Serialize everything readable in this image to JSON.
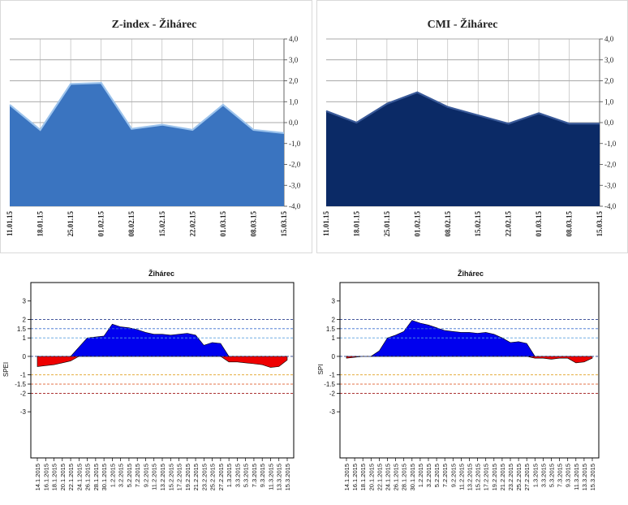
{
  "chart_data": [
    {
      "type": "area",
      "title": "Z-index - Žihárec",
      "x": [
        "11.01.15",
        "18.01.15",
        "25.01.15",
        "01.02.15",
        "08.02.15",
        "15.02.15",
        "22.02.15",
        "01.03.15",
        "08.03.15",
        "15.03.15"
      ],
      "series": [
        {
          "values": [
            0.85,
            -0.35,
            1.85,
            1.9,
            -0.3,
            -0.1,
            -0.35,
            0.85,
            -0.35,
            -0.5
          ]
        }
      ],
      "ylim": [
        -4,
        4
      ],
      "yticks": [
        "4,0",
        "3,0",
        "2,0",
        "1,0",
        "0,0",
        "-1,0",
        "-2,0",
        "-3,0",
        "-4,0"
      ],
      "grid": true,
      "colors": {
        "fill": "#3a74c0",
        "line": "#9cc3ec",
        "frame": "#d9d9d9"
      }
    },
    {
      "type": "area",
      "title": "CMI - Žihárec",
      "x": [
        "11.01.15",
        "18.01.15",
        "25.01.15",
        "01.02.15",
        "08.02.15",
        "15.02.15",
        "22.02.15",
        "01.03.15",
        "08.03.15",
        "15.03.15"
      ],
      "series": [
        {
          "values": [
            0.55,
            0.0,
            0.9,
            1.45,
            0.75,
            0.35,
            -0.05,
            0.45,
            -0.05,
            -0.05
          ]
        }
      ],
      "ylim": [
        -4,
        4
      ],
      "yticks": [
        "4,0",
        "3,0",
        "2,0",
        "1,0",
        "0,0",
        "-1,0",
        "-2,0",
        "-3,0",
        "-4,0"
      ],
      "grid": true,
      "colors": {
        "fill": "#0b2a66",
        "line": "#3a5a99",
        "frame": "#d9d9d9"
      }
    },
    {
      "type": "area",
      "title": "Žiháreс",
      "ylabel": "SPEI",
      "x": [
        "14.1.2015",
        "16.1.2015",
        "18.1.2015",
        "20.1.2015",
        "22.1.2015",
        "24.1.2015",
        "26.1.2015",
        "28.1.2015",
        "30.1.2015",
        "1.2.2015",
        "3.2.2015",
        "5.2.2015",
        "7.2.2015",
        "9.2.2015",
        "11.2.2015",
        "13.2.2015",
        "15.2.2015",
        "17.2.2015",
        "19.2.2015",
        "21.2.2015",
        "23.2.2015",
        "25.2.2015",
        "27.2.2015",
        "1.3.2015",
        "3.3.2015",
        "5.3.2015",
        "7.3.2015",
        "9.3.2015",
        "11.3.2015",
        "13.3.2015",
        "15.3.2015"
      ],
      "series": [
        {
          "values": [
            -0.55,
            -0.5,
            -0.45,
            -0.35,
            -0.25,
            0.5,
            1.0,
            1.05,
            1.1,
            1.75,
            1.6,
            1.55,
            1.45,
            1.3,
            1.2,
            1.2,
            1.15,
            1.2,
            1.25,
            1.15,
            0.6,
            0.75,
            0.7,
            -0.3,
            -0.3,
            -0.35,
            -0.4,
            -0.45,
            -0.6,
            -0.55,
            -0.2
          ]
        }
      ],
      "ylim": [
        -5.5,
        4
      ],
      "yticks": [
        "3",
        "2",
        "1.5",
        "1",
        "0",
        "-1",
        "-1.5",
        "-2",
        "-3"
      ],
      "thresholds": [
        {
          "value": 2,
          "color": "#2a3f8f"
        },
        {
          "value": 1.5,
          "color": "#3a6fd0"
        },
        {
          "value": 1,
          "color": "#5aa0e0"
        },
        {
          "value": 0,
          "color": "#2a3f8f"
        },
        {
          "value": -1,
          "color": "#e0a020"
        },
        {
          "value": -1.5,
          "color": "#e06030"
        },
        {
          "value": -2,
          "color": "#a01818"
        }
      ],
      "colors": {
        "positive": "#0000ee",
        "negative": "#ee0000"
      }
    },
    {
      "type": "area",
      "title": "Žiháreс",
      "ylabel": "SPI",
      "x": [
        "14.1.2015",
        "16.1.2015",
        "18.1.2015",
        "20.1.2015",
        "22.1.2015",
        "24.1.2015",
        "26.1.2015",
        "28.1.2015",
        "30.1.2015",
        "1.2.2015",
        "3.2.2015",
        "5.2.2015",
        "7.2.2015",
        "9.2.2015",
        "11.2.2015",
        "13.2.2015",
        "15.2.2015",
        "17.2.2015",
        "19.2.2015",
        "21.2.2015",
        "23.2.2015",
        "25.2.2015",
        "27.2.2015",
        "1.3.2015",
        "3.3.2015",
        "5.3.2015",
        "7.3.2015",
        "9.3.2015",
        "11.3.2015",
        "13.3.2015",
        "15.3.2015"
      ],
      "series": [
        {
          "values": [
            -0.1,
            -0.05,
            0.0,
            0.0,
            0.3,
            1.0,
            1.15,
            1.35,
            1.95,
            1.8,
            1.7,
            1.55,
            1.4,
            1.35,
            1.3,
            1.3,
            1.25,
            1.3,
            1.2,
            1.0,
            0.75,
            0.8,
            0.7,
            -0.1,
            -0.1,
            -0.15,
            -0.1,
            -0.1,
            -0.35,
            -0.3,
            -0.1
          ]
        }
      ],
      "ylim": [
        -5.5,
        4
      ],
      "yticks": [
        "3",
        "2",
        "1.5",
        "1",
        "0",
        "-1",
        "-1.5",
        "-2",
        "-3"
      ],
      "thresholds": [
        {
          "value": 2,
          "color": "#2a3f8f"
        },
        {
          "value": 1.5,
          "color": "#3a6fd0"
        },
        {
          "value": 1,
          "color": "#5aa0e0"
        },
        {
          "value": 0,
          "color": "#2a3f8f"
        },
        {
          "value": -1,
          "color": "#e0a020"
        },
        {
          "value": -1.5,
          "color": "#e06030"
        },
        {
          "value": -2,
          "color": "#a01818"
        }
      ],
      "colors": {
        "positive": "#0000ee",
        "negative": "#ee0000"
      }
    }
  ]
}
